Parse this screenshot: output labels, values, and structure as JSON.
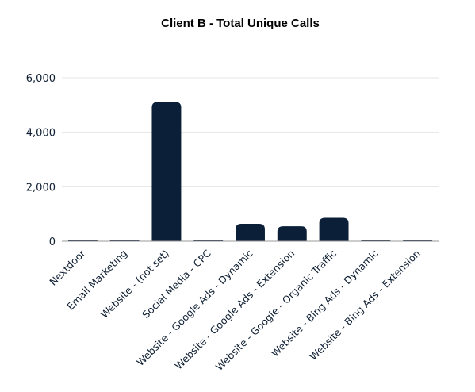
{
  "chart_data": {
    "type": "bar",
    "title": "Client B - Total Unique Calls",
    "xlabel": "",
    "ylabel": "",
    "categories": [
      "Nextdoor",
      "Email Marketing",
      "Website - (not set)",
      "Social Media - CPC",
      "Website - Google Ads - Dynamic",
      "Website - Google Ads - Extension",
      "Website - Google - Organic Traffic",
      "Website - Bing Ads - Dynamic",
      "Website - Bing Ads - Extension"
    ],
    "values": [
      30,
      40,
      5110,
      8,
      640,
      550,
      860,
      8,
      2
    ],
    "ylim": [
      0,
      6000
    ],
    "yticks": [
      0,
      2000,
      4000,
      6000
    ],
    "ytick_labels": [
      "0",
      "2,000",
      "4,000",
      "6,000"
    ],
    "grid": true,
    "legend": "none",
    "bar_color": "#0b2038"
  }
}
